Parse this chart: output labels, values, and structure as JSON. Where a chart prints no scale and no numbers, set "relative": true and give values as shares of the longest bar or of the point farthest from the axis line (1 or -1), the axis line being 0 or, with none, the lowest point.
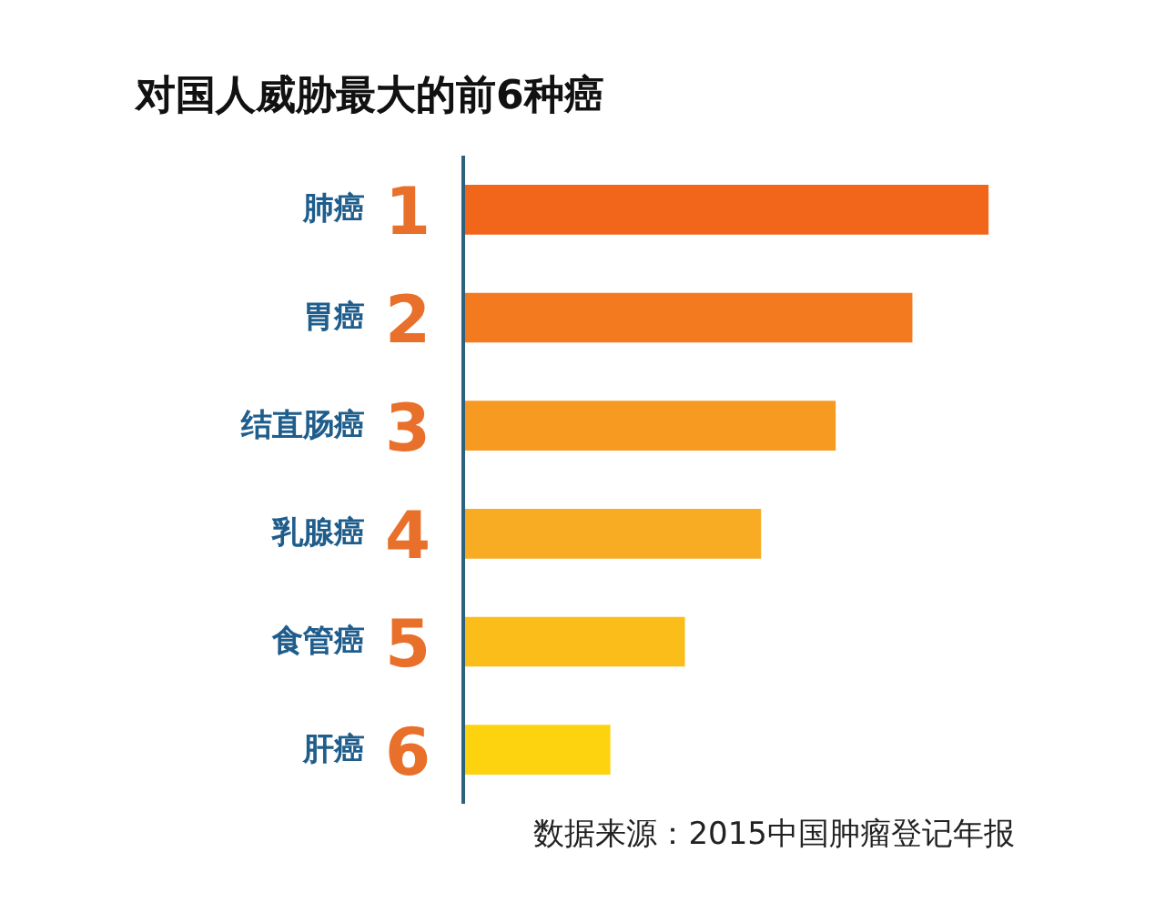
{
  "chart_data": {
    "type": "bar",
    "orientation": "horizontal",
    "relative": true,
    "title": "对国人威胁最大的前6种癌",
    "categories": [
      "肺癌",
      "胃癌",
      "结直肠癌",
      "乳腺癌",
      "食管癌",
      "肝癌"
    ],
    "values": [
      1,
      0.855,
      0.709,
      0.567,
      0.422,
      0.28
    ],
    "colors": [
      "#f2661b",
      "#f47a1f",
      "#f79a22",
      "#f8ac23",
      "#fbbd1a",
      "#fdd20f"
    ],
    "annotations": [
      "1",
      "2",
      "3",
      "4",
      "5",
      "6",
      "数据来源：2015中国肿瘤登记年报"
    ],
    "grid": false
  }
}
